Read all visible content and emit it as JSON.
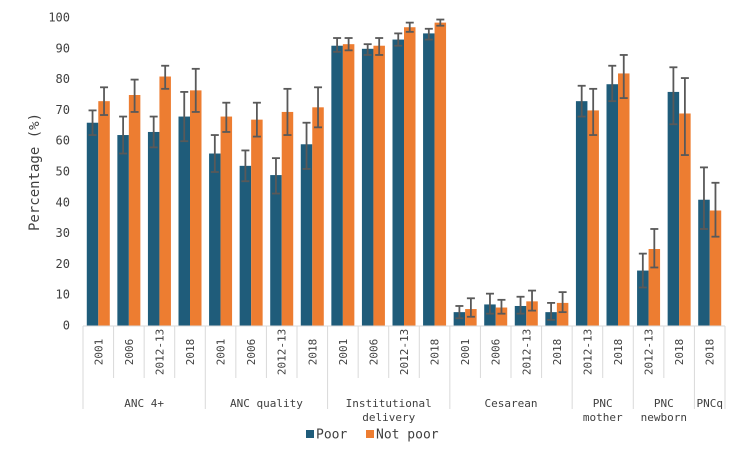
{
  "chart_data": {
    "type": "bar",
    "title": "",
    "xlabel": "",
    "ylabel": "Percentage (%)",
    "ylim": [
      0,
      100
    ],
    "yticks": [
      0,
      10,
      20,
      30,
      40,
      50,
      60,
      70,
      80,
      90,
      100
    ],
    "grid": false,
    "legend_position": "bottom-center",
    "groups": [
      {
        "label": "ANC 4+",
        "categories": [
          "2001",
          "2006",
          "2012-13",
          "2018"
        ]
      },
      {
        "label": "ANC quality",
        "categories": [
          "2001",
          "2006",
          "2012-13",
          "2018"
        ]
      },
      {
        "label": "Institutional delivery",
        "label_lines": [
          "Institutional",
          "delivery"
        ],
        "categories": [
          "2001",
          "2006",
          "2012-13",
          "2018"
        ]
      },
      {
        "label": "Cesarean",
        "categories": [
          "2001",
          "2006",
          "2012-13",
          "2018"
        ]
      },
      {
        "label": "PNC mother",
        "label_lines": [
          "PNC",
          "mother"
        ],
        "categories": [
          "2012-13",
          "2018"
        ]
      },
      {
        "label": "PNC newborn",
        "label_lines": [
          "PNC",
          "newborn"
        ],
        "categories": [
          "2012-13",
          "2018"
        ]
      },
      {
        "label": "PNCq",
        "categories": [
          "2018"
        ]
      }
    ],
    "categories": [
      "2001",
      "2006",
      "2012-13",
      "2018",
      "2001",
      "2006",
      "2012-13",
      "2018",
      "2001",
      "2006",
      "2012-13",
      "2018",
      "2001",
      "2006",
      "2012-13",
      "2018",
      "2012-13",
      "2018",
      "2012-13",
      "2018",
      "2018"
    ],
    "series": [
      {
        "name": "Poor",
        "color": "#1f5c7a",
        "values": [
          66,
          62,
          63,
          68,
          56,
          52,
          49,
          59,
          91,
          90,
          93,
          95,
          4.5,
          7,
          6.5,
          4.5,
          73,
          78.5,
          18,
          76,
          41
        ],
        "err_low": [
          62,
          56,
          58,
          60,
          50,
          47,
          43,
          51,
          89,
          88,
          91,
          93,
          2.5,
          4,
          4,
          2,
          68,
          73,
          12.5,
          65.5,
          31.5
        ],
        "err_high": [
          70,
          68,
          68,
          76,
          62,
          57,
          54.5,
          66,
          93.5,
          91.5,
          95,
          96.5,
          6.5,
          10.5,
          9.5,
          7.5,
          78,
          84.5,
          23.5,
          84,
          51.5
        ]
      },
      {
        "name": "Not poor",
        "color": "#ed7d31",
        "values": [
          73,
          75,
          81,
          76.5,
          68,
          67,
          69.5,
          71,
          91.5,
          91,
          97,
          98.5,
          5.5,
          6,
          8,
          7.5,
          70,
          82,
          25,
          69,
          37.5
        ],
        "err_low": [
          68.5,
          69.5,
          77,
          69.5,
          63,
          61.5,
          62,
          64.5,
          89.5,
          88,
          95.5,
          97.5,
          3,
          4,
          5,
          4.5,
          62,
          74,
          19,
          55.5,
          29
        ],
        "err_high": [
          77.5,
          80,
          84.5,
          83.5,
          72.5,
          72.5,
          77,
          77.5,
          93.5,
          93.5,
          98.5,
          99.5,
          9,
          8.5,
          11.5,
          11,
          77,
          88,
          31.5,
          80.5,
          46.5
        ]
      }
    ]
  }
}
